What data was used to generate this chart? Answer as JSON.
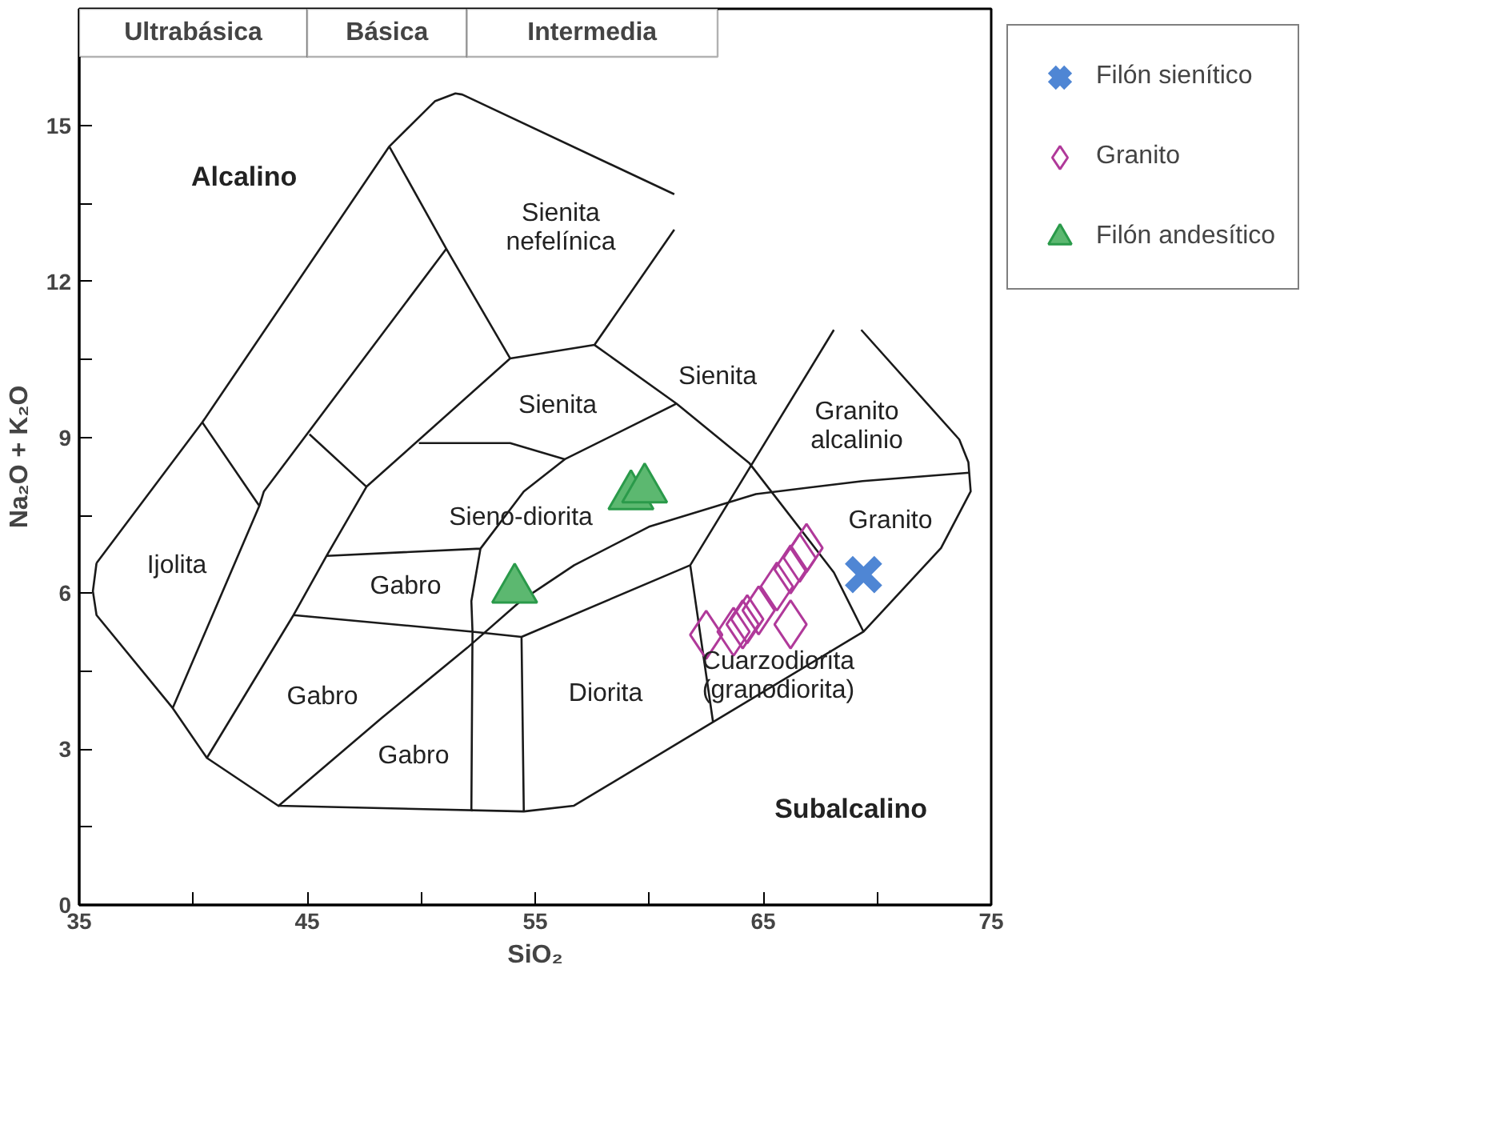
{
  "chart_data": {
    "type": "scatter",
    "xlabel": "SiO₂",
    "ylabel": "Na₂O + K₂O",
    "xlim": [
      35,
      75
    ],
    "ylim": [
      0,
      17.25
    ],
    "xticks": [
      35,
      {
        "value": 40,
        "label": null
      },
      45,
      {
        "value": 50,
        "label": null
      },
      55,
      {
        "value": 60,
        "label": null
      },
      65,
      {
        "value": 70,
        "label": null
      },
      75
    ],
    "yticks": [
      0,
      {
        "value": 1.5,
        "label": null
      },
      3,
      {
        "value": 4.5,
        "label": null
      },
      6,
      {
        "value": 7.5,
        "label": null
      },
      9,
      {
        "value": 10.5,
        "label": null
      },
      12,
      {
        "value": 13.5,
        "label": null
      },
      15
    ],
    "grid": false,
    "legend": "right",
    "bands": [
      {
        "axis": "x",
        "from": 35,
        "to": 45,
        "label": "Ultrabásica",
        "color": "#ffffff"
      },
      {
        "axis": "x",
        "from": 45,
        "to": 52,
        "label": "Básica",
        "color": "#ffffff"
      },
      {
        "axis": "x",
        "from": 52,
        "to": 63,
        "label": "Intermedia",
        "color": "#ffffff"
      }
    ],
    "series": [
      {
        "type": "line",
        "color": "#1a1a1a",
        "marker": "none",
        "x": [
          35.76,
          35.6,
          35.76,
          39.1,
          40.6,
          43.73,
          54.5,
          56.7,
          62.8,
          69.4,
          72.8,
          74.1,
          74.0,
          73.6,
          69.3,
          null,
          35.76,
          40.4,
          48.6,
          50.6,
          51.5,
          51.8,
          61.1,
          null,
          40.4,
          42.9,
          null,
          39.1,
          42.9,
          43.1,
          51.1,
          null,
          48.6,
          51.1,
          53.9,
          null,
          40.6,
          44.4,
          45.85,
          47.6,
          53.9,
          57.6,
          61.1,
          null,
          57.6,
          61.2,
          64.4,
          68.1,
          69.4,
          null,
          45.1,
          47.6,
          null,
          49.9,
          53.9,
          56.3,
          61.2,
          null,
          56.3,
          54.5,
          52.6,
          52.2,
          52.25,
          52.2,
          null,
          45.85,
          52.6,
          null,
          44.4,
          52.25,
          54.4,
          61.8,
          68.1,
          null,
          61.8,
          62.8,
          null,
          54.4,
          54.5
        ],
        "values": [
          6.58,
          6.04,
          5.58,
          3.79,
          2.83,
          1.91,
          1.8,
          1.91,
          3.52,
          5.26,
          6.87,
          7.96,
          8.52,
          8.96,
          11.07,
          null,
          6.58,
          9.29,
          14.6,
          15.47,
          15.62,
          15.6,
          13.68,
          null,
          9.29,
          7.68,
          null,
          3.79,
          7.68,
          7.96,
          12.63,
          null,
          14.6,
          12.63,
          10.52,
          null,
          2.83,
          5.58,
          6.72,
          8.05,
          10.52,
          10.78,
          13.0,
          null,
          10.78,
          9.65,
          8.5,
          6.4,
          5.26,
          null,
          9.06,
          8.05,
          null,
          8.89,
          8.89,
          8.58,
          9.65,
          null,
          8.58,
          7.96,
          6.86,
          5.85,
          5.26,
          1.8,
          null,
          6.72,
          6.86,
          null,
          5.58,
          5.26,
          5.16,
          6.54,
          11.07,
          null,
          6.54,
          3.52,
          null,
          5.16,
          1.8
        ]
      },
      {
        "type": "line",
        "color": "#1a1a1a",
        "marker": "none",
        "x": [
          43.72,
          48.27,
          52.02,
          54.36,
          56.71,
          59.99,
          64.68,
          69.36,
          74.05
        ],
        "values": [
          1.9,
          3.6,
          4.95,
          5.85,
          6.54,
          7.28,
          7.91,
          8.16,
          8.32
        ]
      },
      {
        "name": "Filón sienítico",
        "marker": "cross",
        "color": "#4f86d4",
        "x": [
          69.4
        ],
        "values": [
          6.36
        ]
      },
      {
        "name": "Granito",
        "marker": "diamond",
        "color": "#b0399a",
        "x": [
          62.5,
          63.7,
          64.1,
          64.3,
          64.8,
          65.6,
          66.2,
          66.2,
          66.6,
          66.9
        ],
        "values": [
          5.2,
          5.26,
          5.4,
          5.5,
          5.67,
          6.13,
          5.4,
          6.46,
          6.68,
          6.87
        ]
      },
      {
        "name": "Filón andesítico",
        "marker": "triangle",
        "color": "#5cb870",
        "x": [
          54.1,
          59.2,
          59.8
        ],
        "values": [
          6.07,
          7.87,
          8.0
        ]
      }
    ],
    "annotations": [
      "Alcalino",
      "Subalcalino",
      "Ijolita",
      "Gabro",
      "Gabro",
      "Gabro",
      "Sienita\nnefelínica",
      "Sienita",
      "Sienita",
      "Sieno-diorita",
      "Granito\nalcalinio",
      "Granito",
      "Cuarzodiorita\n(granodiorita)",
      "Diorita"
    ]
  }
}
